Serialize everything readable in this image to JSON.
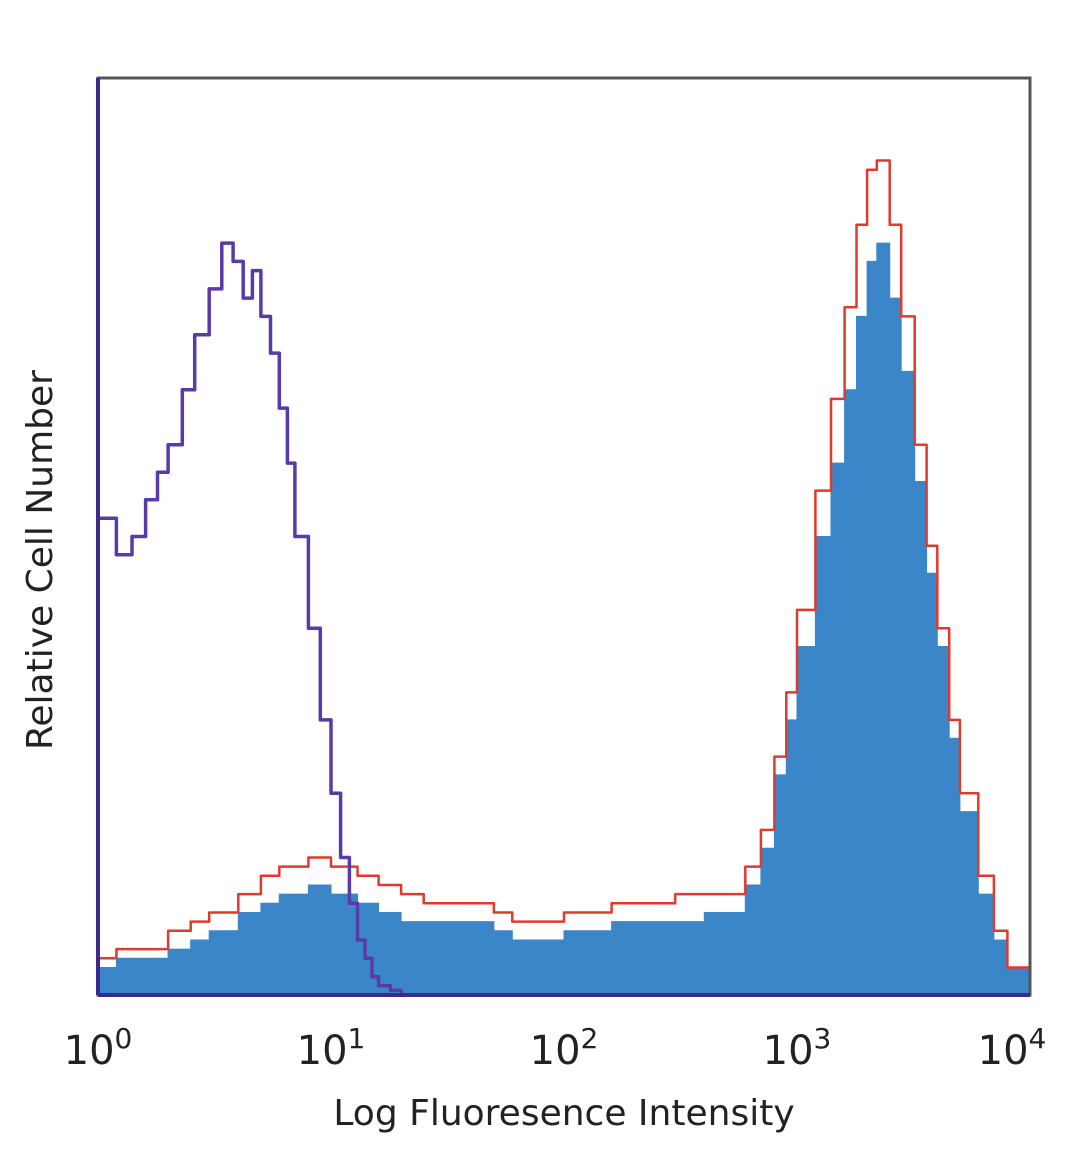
{
  "chart_data": {
    "type": "area",
    "title": "",
    "xlabel": "Log Fluoresence Intensity",
    "ylabel": "Relative Cell Number",
    "x_scale": "log",
    "xlim": [
      1,
      10000
    ],
    "ylim": [
      0,
      100
    ],
    "grid": false,
    "x_ticks": [
      {
        "base": "10",
        "exp": "0"
      },
      {
        "base": "10",
        "exp": "1"
      },
      {
        "base": "10",
        "exp": "2"
      },
      {
        "base": "10",
        "exp": "3"
      },
      {
        "base": "10",
        "exp": "4"
      }
    ],
    "colors": {
      "filled": "#3a86c8",
      "red_outline": "#e03a2f",
      "purple_outline": "#5a3aa8",
      "frame": "#555555"
    },
    "series": [
      {
        "style": "filled",
        "x": [
          1,
          1.2,
          1.5,
          2,
          2.5,
          3,
          4,
          5,
          6,
          8,
          10,
          13,
          16,
          20,
          25,
          30,
          40,
          50,
          60,
          80,
          100,
          130,
          160,
          200,
          250,
          300,
          400,
          500,
          600,
          700,
          800,
          900,
          1000,
          1200,
          1400,
          1600,
          1800,
          2000,
          2200,
          2500,
          2800,
          3200,
          3600,
          4000,
          4500,
          5000,
          6000,
          7000,
          8000,
          10000
        ],
        "y": [
          3,
          4,
          4,
          5,
          6,
          7,
          9,
          10,
          11,
          12,
          11,
          10,
          9,
          8,
          8,
          8,
          8,
          7,
          6,
          6,
          7,
          7,
          8,
          8,
          8,
          8,
          9,
          9,
          12,
          16,
          24,
          30,
          38,
          50,
          58,
          66,
          74,
          80,
          82,
          76,
          68,
          56,
          46,
          38,
          28,
          20,
          11,
          6,
          3,
          1
        ]
      },
      {
        "style": "red-outline",
        "x": [
          1,
          1.2,
          1.5,
          2,
          2.5,
          3,
          4,
          5,
          6,
          8,
          10,
          13,
          16,
          20,
          25,
          30,
          40,
          50,
          60,
          80,
          100,
          130,
          160,
          200,
          250,
          300,
          400,
          500,
          600,
          700,
          800,
          900,
          1000,
          1200,
          1400,
          1600,
          1800,
          2000,
          2200,
          2500,
          2800,
          3200,
          3600,
          4000,
          4500,
          5000,
          6000,
          7000,
          8000,
          10000
        ],
        "y": [
          4,
          5,
          5,
          7,
          8,
          9,
          11,
          13,
          14,
          15,
          14,
          13,
          12,
          11,
          10,
          10,
          10,
          9,
          8,
          8,
          9,
          9,
          10,
          10,
          10,
          11,
          11,
          11,
          14,
          18,
          26,
          33,
          42,
          55,
          65,
          75,
          84,
          90,
          91,
          84,
          74,
          60,
          49,
          40,
          30,
          22,
          13,
          7,
          3,
          1
        ]
      },
      {
        "style": "purple-outline",
        "x": [
          1,
          1.2,
          1.4,
          1.6,
          1.8,
          2,
          2.3,
          2.6,
          3,
          3.4,
          3.8,
          4.2,
          4.6,
          5,
          5.5,
          6,
          6.5,
          7,
          8,
          9,
          10,
          11,
          12,
          13,
          14,
          15,
          16,
          18,
          20
        ],
        "y": [
          52,
          48,
          50,
          54,
          57,
          60,
          66,
          72,
          77,
          82,
          80,
          76,
          79,
          74,
          70,
          64,
          58,
          50,
          40,
          30,
          22,
          15,
          10,
          6,
          4,
          2,
          1,
          0.5,
          0
        ]
      }
    ]
  }
}
